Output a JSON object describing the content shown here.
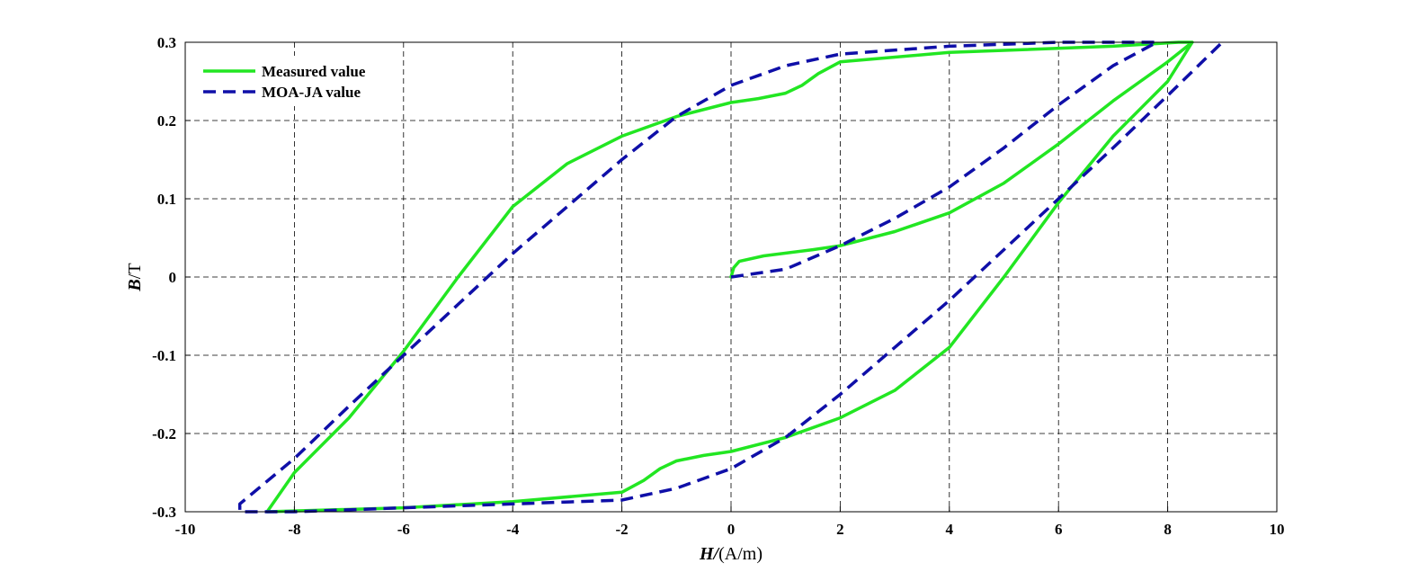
{
  "chart_data": {
    "type": "line",
    "title": "",
    "xlabel": {
      "italic_part": "H/",
      "rest": "(A/m)"
    },
    "ylabel": {
      "italic_part": "B",
      "rest": "/T"
    },
    "xlim": [
      -10,
      10
    ],
    "ylim": [
      -0.3,
      0.3
    ],
    "xticks": [
      -10,
      -8,
      -6,
      -4,
      -2,
      0,
      2,
      4,
      6,
      8,
      10
    ],
    "yticks": [
      -0.3,
      -0.2,
      -0.1,
      0,
      0.1,
      0.2,
      0.3
    ],
    "xtick_labels": [
      "-10",
      "-8",
      "-6",
      "-4",
      "-2",
      "0",
      "2",
      "4",
      "6",
      "8",
      "10"
    ],
    "ytick_labels": [
      "-0.3",
      "-0.2",
      "-0.1",
      "0",
      "0.1",
      "0.2",
      "0.3"
    ],
    "grid": true,
    "legend_position": "top-left",
    "series": [
      {
        "name": "Measured value",
        "color": "#22e622",
        "style": "solid",
        "x": [
          0,
          0.05,
          0.15,
          0.6,
          1.5,
          2.0,
          3.0,
          4.0,
          5.0,
          6.0,
          7.0,
          8.0,
          8.45,
          8.2,
          7.0,
          4.0,
          2.0,
          1.6,
          1.3,
          1.0,
          0.5,
          0.0,
          -1.0,
          -2.0,
          -3.0,
          -4.0,
          -5.0,
          -6.0,
          -7.0,
          -8.0,
          -8.5,
          -8.5,
          -6.0,
          -4.0,
          -2.0,
          -1.6,
          -1.3,
          -1.0,
          -0.5,
          0.0,
          1.0,
          2.0,
          3.0,
          4.0,
          5.0,
          6.0,
          7.0,
          8.0,
          8.45
        ],
        "y": [
          0,
          0.012,
          0.02,
          0.027,
          0.035,
          0.04,
          0.058,
          0.082,
          0.12,
          0.17,
          0.225,
          0.275,
          0.3,
          0.3,
          0.295,
          0.287,
          0.275,
          0.26,
          0.245,
          0.235,
          0.228,
          0.223,
          0.205,
          0.18,
          0.145,
          0.09,
          0.0,
          -0.095,
          -0.18,
          -0.25,
          -0.3,
          -0.3,
          -0.295,
          -0.287,
          -0.275,
          -0.26,
          -0.245,
          -0.235,
          -0.228,
          -0.223,
          -0.205,
          -0.18,
          -0.145,
          -0.09,
          0.0,
          0.095,
          0.18,
          0.25,
          0.3
        ]
      },
      {
        "name": "MOA-JA value",
        "color": "#0f0fa8",
        "style": "dashed",
        "x": [
          0,
          1.0,
          2.0,
          3.0,
          4.0,
          5.0,
          6.0,
          7.0,
          7.8,
          7.8,
          6.0,
          4.0,
          2.0,
          1.0,
          0.0,
          -1.0,
          -2.0,
          -3.0,
          -4.0,
          -5.0,
          -6.0,
          -7.0,
          -8.0,
          -9.0,
          -9.0,
          -8.0,
          -6.0,
          -4.0,
          -2.0,
          -1.0,
          0.0,
          1.0,
          2.0,
          3.0,
          4.0,
          5.0,
          6.0,
          7.0,
          8.0,
          9.0
        ],
        "y": [
          0,
          0.01,
          0.04,
          0.075,
          0.115,
          0.165,
          0.22,
          0.27,
          0.3,
          0.3,
          0.3,
          0.295,
          0.285,
          0.27,
          0.245,
          0.205,
          0.15,
          0.09,
          0.03,
          -0.035,
          -0.1,
          -0.165,
          -0.232,
          -0.29,
          -0.3,
          -0.3,
          -0.295,
          -0.29,
          -0.285,
          -0.27,
          -0.245,
          -0.205,
          -0.15,
          -0.09,
          -0.03,
          0.035,
          0.1,
          0.165,
          0.232,
          0.3
        ]
      }
    ]
  }
}
